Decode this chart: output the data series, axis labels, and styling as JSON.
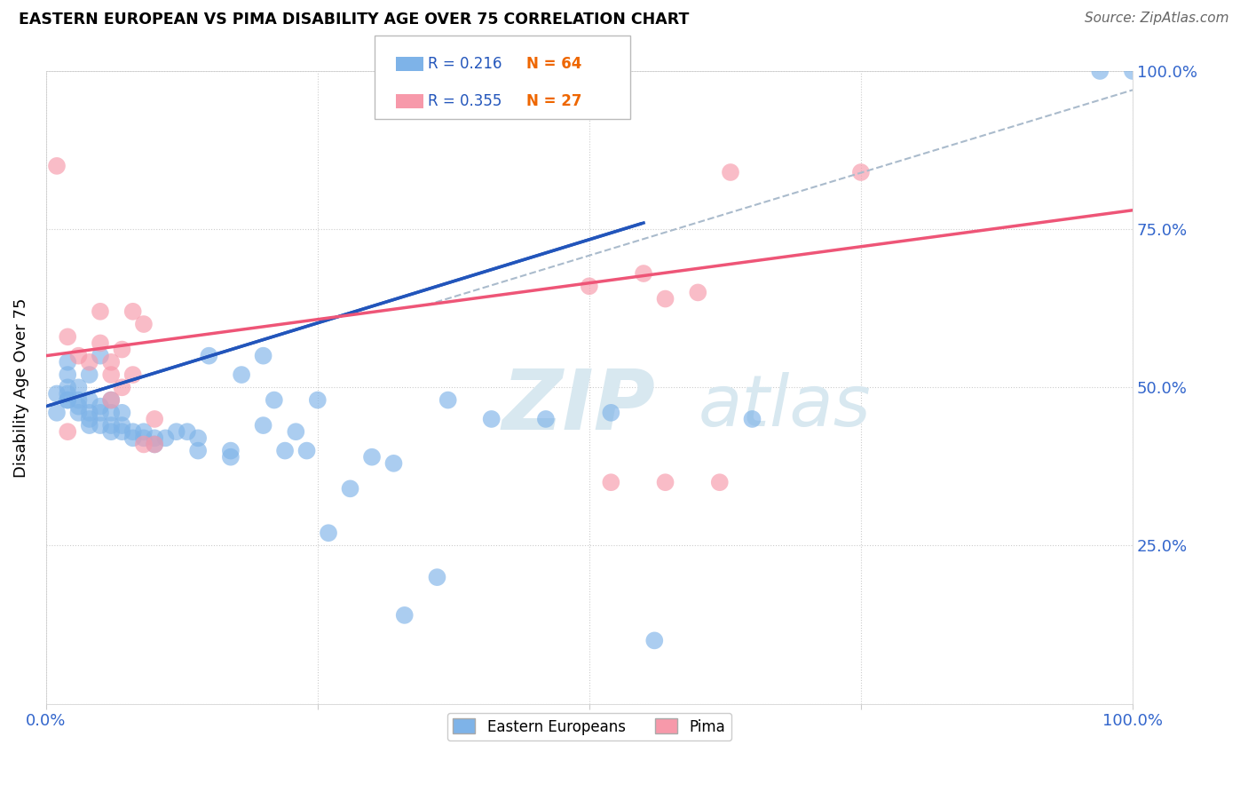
{
  "title": "EASTERN EUROPEAN VS PIMA DISABILITY AGE OVER 75 CORRELATION CHART",
  "source_text": "Source: ZipAtlas.com",
  "ylabel": "Disability Age Over 75",
  "xlim": [
    0,
    1.0
  ],
  "ylim": [
    0,
    1.0
  ],
  "legend_labels": [
    "Eastern Europeans",
    "Pima"
  ],
  "r_blue": 0.216,
  "n_blue": 64,
  "r_pink": 0.355,
  "n_pink": 27,
  "blue_color": "#7EB3E8",
  "pink_color": "#F799AA",
  "blue_line_color": "#2255BB",
  "pink_line_color": "#EE5577",
  "dash_line_color": "#AABBCC",
  "watermark_color": "#D8E8F0",
  "blue_line_x0": 0.0,
  "blue_line_y0": 0.47,
  "blue_line_x1": 0.55,
  "blue_line_y1": 0.76,
  "pink_line_x0": 0.0,
  "pink_line_y0": 0.55,
  "pink_line_x1": 1.0,
  "pink_line_y1": 0.78,
  "dash_line_x0": 0.35,
  "dash_line_y0": 0.63,
  "dash_line_x1": 1.0,
  "dash_line_y1": 0.97,
  "blue_scatter_x": [
    0.01,
    0.01,
    0.02,
    0.02,
    0.02,
    0.02,
    0.02,
    0.02,
    0.03,
    0.03,
    0.03,
    0.03,
    0.04,
    0.04,
    0.04,
    0.04,
    0.04,
    0.05,
    0.05,
    0.05,
    0.05,
    0.06,
    0.06,
    0.06,
    0.06,
    0.07,
    0.07,
    0.07,
    0.08,
    0.08,
    0.09,
    0.09,
    0.1,
    0.1,
    0.11,
    0.12,
    0.13,
    0.14,
    0.14,
    0.15,
    0.17,
    0.17,
    0.18,
    0.2,
    0.2,
    0.21,
    0.22,
    0.23,
    0.24,
    0.25,
    0.26,
    0.28,
    0.3,
    0.32,
    0.33,
    0.36,
    0.37,
    0.41,
    0.46,
    0.52,
    0.56,
    0.65,
    0.97,
    1.0
  ],
  "blue_scatter_y": [
    0.46,
    0.49,
    0.48,
    0.48,
    0.49,
    0.5,
    0.52,
    0.54,
    0.46,
    0.47,
    0.48,
    0.5,
    0.44,
    0.45,
    0.46,
    0.48,
    0.52,
    0.44,
    0.46,
    0.47,
    0.55,
    0.43,
    0.44,
    0.46,
    0.48,
    0.43,
    0.44,
    0.46,
    0.42,
    0.43,
    0.42,
    0.43,
    0.41,
    0.42,
    0.42,
    0.43,
    0.43,
    0.4,
    0.42,
    0.55,
    0.39,
    0.4,
    0.52,
    0.44,
    0.55,
    0.48,
    0.4,
    0.43,
    0.4,
    0.48,
    0.27,
    0.34,
    0.39,
    0.38,
    0.14,
    0.2,
    0.48,
    0.45,
    0.45,
    0.46,
    0.1,
    0.45,
    1.0,
    1.0
  ],
  "pink_scatter_x": [
    0.01,
    0.02,
    0.02,
    0.03,
    0.04,
    0.05,
    0.05,
    0.06,
    0.06,
    0.06,
    0.07,
    0.07,
    0.08,
    0.08,
    0.09,
    0.09,
    0.1,
    0.1,
    0.5,
    0.52,
    0.55,
    0.57,
    0.57,
    0.6,
    0.62,
    0.63,
    0.75
  ],
  "pink_scatter_y": [
    0.85,
    0.43,
    0.58,
    0.55,
    0.54,
    0.57,
    0.62,
    0.48,
    0.52,
    0.54,
    0.5,
    0.56,
    0.52,
    0.62,
    0.41,
    0.6,
    0.41,
    0.45,
    0.66,
    0.35,
    0.68,
    0.64,
    0.35,
    0.65,
    0.35,
    0.84,
    0.84
  ]
}
